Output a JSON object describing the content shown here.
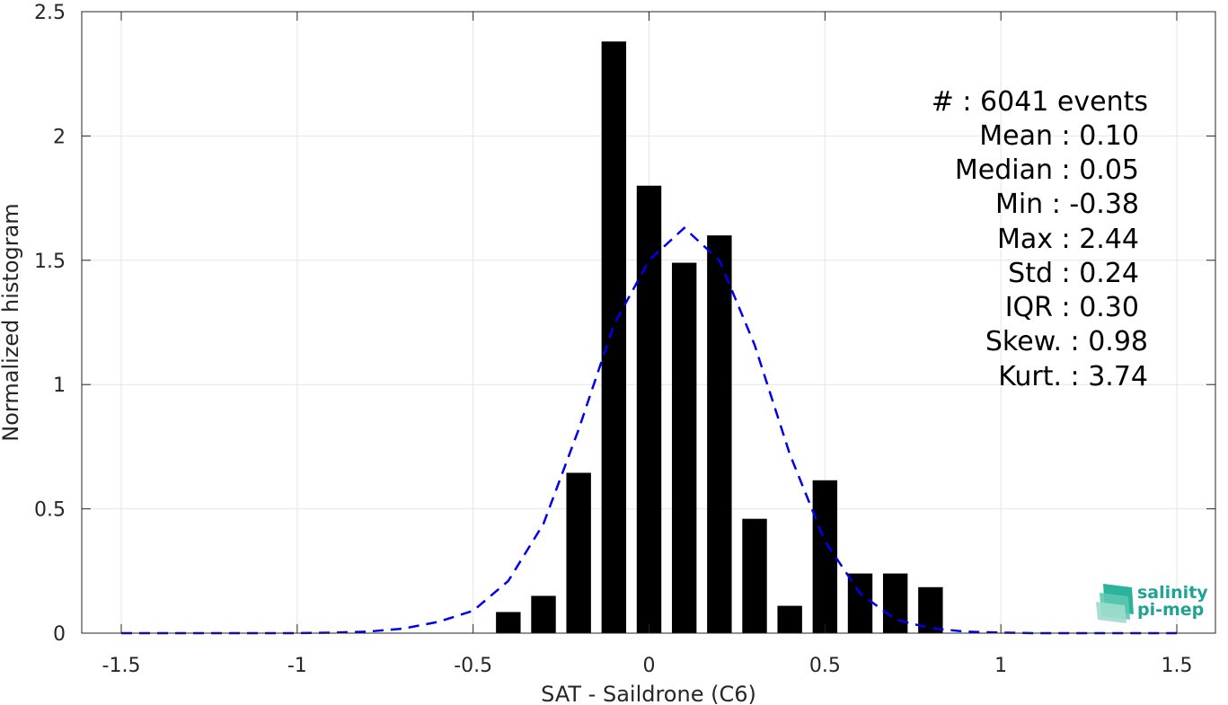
{
  "chart_data": {
    "type": "bar",
    "xlabel": "SAT - Saildrone (C6)",
    "ylabel": "Normalized histogram",
    "xlim": [
      -1.5,
      1.5
    ],
    "ylim": [
      0,
      2.5
    ],
    "xticks": [
      -1.5,
      -1,
      -0.5,
      0,
      0.5,
      1,
      1.5
    ],
    "xtick_labels": [
      "-1.5",
      "-1",
      "-0.5",
      "0",
      "0.5",
      "1",
      "1.5"
    ],
    "yticks": [
      0,
      0.5,
      1,
      1.5,
      2,
      2.5
    ],
    "ytick_labels": [
      "0",
      "0.5",
      "1",
      "1.5",
      "2",
      "2.5"
    ],
    "grid": true,
    "bar_color": "#000000",
    "bar_width": 0.07,
    "bars": [
      {
        "x": -0.4,
        "value": 0.085
      },
      {
        "x": -0.3,
        "value": 0.15
      },
      {
        "x": -0.2,
        "value": 0.645
      },
      {
        "x": -0.1,
        "value": 2.38
      },
      {
        "x": 0.0,
        "value": 1.8
      },
      {
        "x": 0.1,
        "value": 1.49
      },
      {
        "x": 0.2,
        "value": 1.6
      },
      {
        "x": 0.3,
        "value": 0.46
      },
      {
        "x": 0.4,
        "value": 0.11
      },
      {
        "x": 0.5,
        "value": 0.615
      },
      {
        "x": 0.6,
        "value": 0.24
      },
      {
        "x": 0.7,
        "value": 0.24
      },
      {
        "x": 0.8,
        "value": 0.185
      }
    ],
    "fit_curve": {
      "style": "dashed",
      "color": "#0000ee",
      "x": [
        -1.5,
        -1.4,
        -1.3,
        -1.2,
        -1.1,
        -1.0,
        -0.9,
        -0.8,
        -0.7,
        -0.6,
        -0.5,
        -0.4,
        -0.3,
        -0.2,
        -0.1,
        0.0,
        0.1,
        0.2,
        0.3,
        0.4,
        0.5,
        0.6,
        0.7,
        0.8,
        0.9,
        1.0,
        1.1,
        1.2,
        1.3,
        1.4,
        1.5
      ],
      "y": [
        0,
        0,
        0,
        0,
        0,
        0,
        0.002,
        0.006,
        0.018,
        0.045,
        0.09,
        0.21,
        0.44,
        0.82,
        1.24,
        1.5,
        1.63,
        1.5,
        1.16,
        0.72,
        0.37,
        0.16,
        0.055,
        0.02,
        0.006,
        0.002,
        0,
        0,
        0,
        0,
        0
      ]
    }
  },
  "stats": {
    "count": "#  : 6041 events",
    "mean": "Mean : 0.10",
    "median": "Median : 0.05",
    "min": "Min : -0.38",
    "max": "Max : 2.44",
    "std": "Std : 0.24",
    "iqr": "IQR : 0.30",
    "skew": "Skew. : 0.98",
    "kurt": "Kurt. : 3.74"
  },
  "logo": {
    "line1": "salinity",
    "line2": "pi-mep",
    "color": "#1fa393"
  }
}
